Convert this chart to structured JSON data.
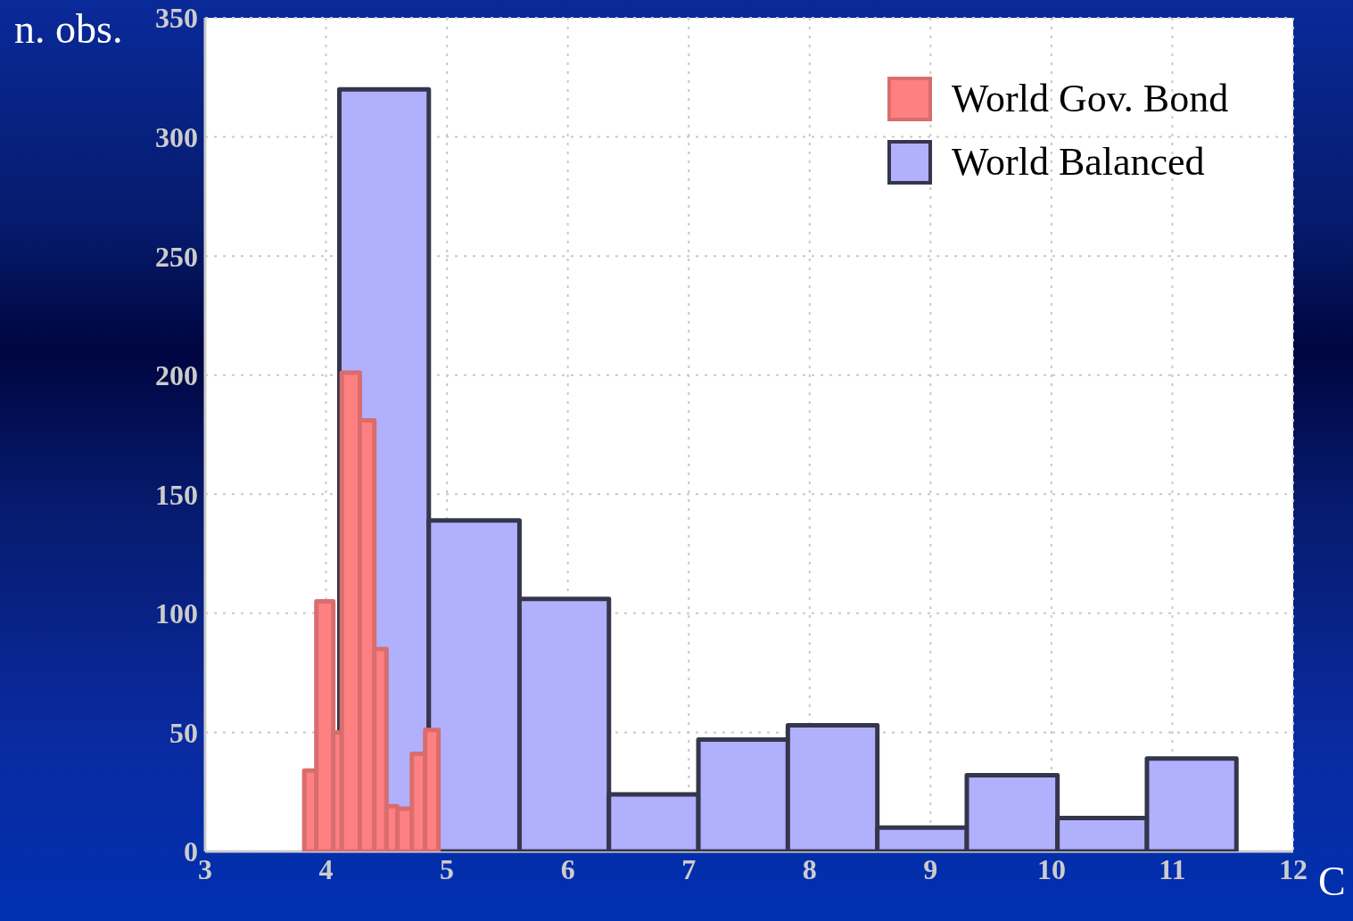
{
  "chart_data": {
    "type": "histogram",
    "ylabel": "n. obs.",
    "xlabel": "C",
    "xlim": [
      3,
      12
    ],
    "xticks": [
      3,
      4,
      5,
      6,
      7,
      8,
      9,
      10,
      11,
      12
    ],
    "ylim": [
      0,
      350
    ],
    "yticks": [
      0,
      50,
      100,
      150,
      200,
      250,
      300,
      350
    ],
    "grid": true,
    "legend": "top right",
    "bins": [
      4.11,
      4.85,
      5.6,
      6.34,
      7.08,
      7.82,
      8.56,
      9.3,
      10.05,
      10.79,
      11.53
    ],
    "series": [
      {
        "name": "World Gov. Bond",
        "color": "#ff8080",
        "bins": [
          3.82,
          3.92,
          4.06,
          4.13,
          4.28,
          4.4,
          4.5,
          4.59,
          4.71,
          4.82,
          4.93
        ],
        "values": [
          34,
          105,
          50,
          201,
          181,
          85,
          19,
          18,
          41,
          51
        ]
      },
      {
        "name": "World Balanced",
        "color": "#b0b0fc",
        "values": [
          320,
          139,
          106,
          24,
          47,
          53,
          10,
          32,
          14,
          39
        ]
      }
    ]
  }
}
